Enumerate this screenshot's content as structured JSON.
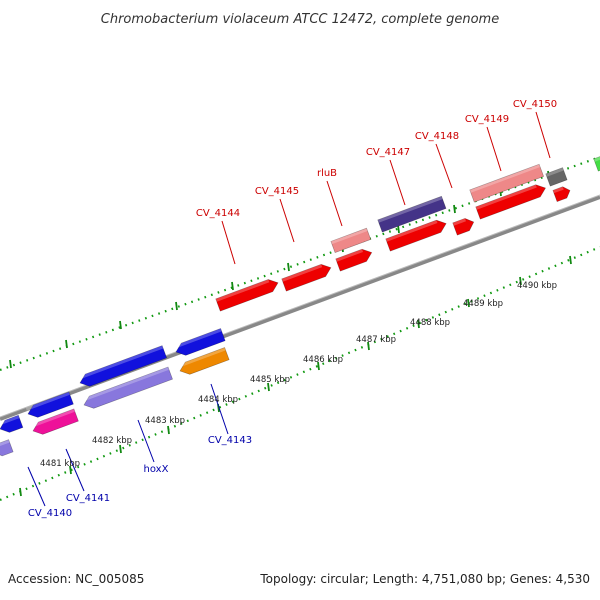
{
  "title": "Chromobacterium violaceum ATCC 12472, complete genome",
  "footer": {
    "accession": "Accession: NC_005085",
    "summary": "Topology: circular; Length: 4,751,080 bp; Genes: 4,530"
  },
  "colors": {
    "forward_gene": "#ee0000",
    "forward_pseudo": "#ee8888",
    "reverse_gene": "#1111dd",
    "reverse_pseudo": "#8877dd",
    "reverse_dark": "#443388",
    "reverse_magenta": "#ee1199",
    "reverse_orange": "#ee8800",
    "gray_gene": "#666666",
    "green_gene": "#44dd44",
    "forward_label": "#cc0000",
    "reverse_label": "#0000aa",
    "backbone": "#888888",
    "tick_forward": "#118811",
    "tick_reverse": "#118811"
  },
  "scale": {
    "labels": [
      "4481 kbp",
      "4482 kbp",
      "4483 kbp",
      "4484 kbp",
      "4485 kbp",
      "4486 kbp",
      "4487 kbp",
      "4488 kbp",
      "4489 kbp",
      "4490 kbp"
    ],
    "positions_kbp": [
      4481,
      4482,
      4483,
      4484,
      4485,
      4486,
      4487,
      4488,
      4489,
      4490
    ]
  },
  "forward_labels": [
    {
      "name": "CV_4144"
    },
    {
      "name": "CV_4145"
    },
    {
      "name": "rluB"
    },
    {
      "name": "CV_4147"
    },
    {
      "name": "CV_4148"
    },
    {
      "name": "CV_4149"
    },
    {
      "name": "CV_4150"
    }
  ],
  "reverse_labels": [
    {
      "name": "CV_4140"
    },
    {
      "name": "CV_4141"
    },
    {
      "name": "hoxX"
    },
    {
      "name": "CV_4143"
    }
  ]
}
